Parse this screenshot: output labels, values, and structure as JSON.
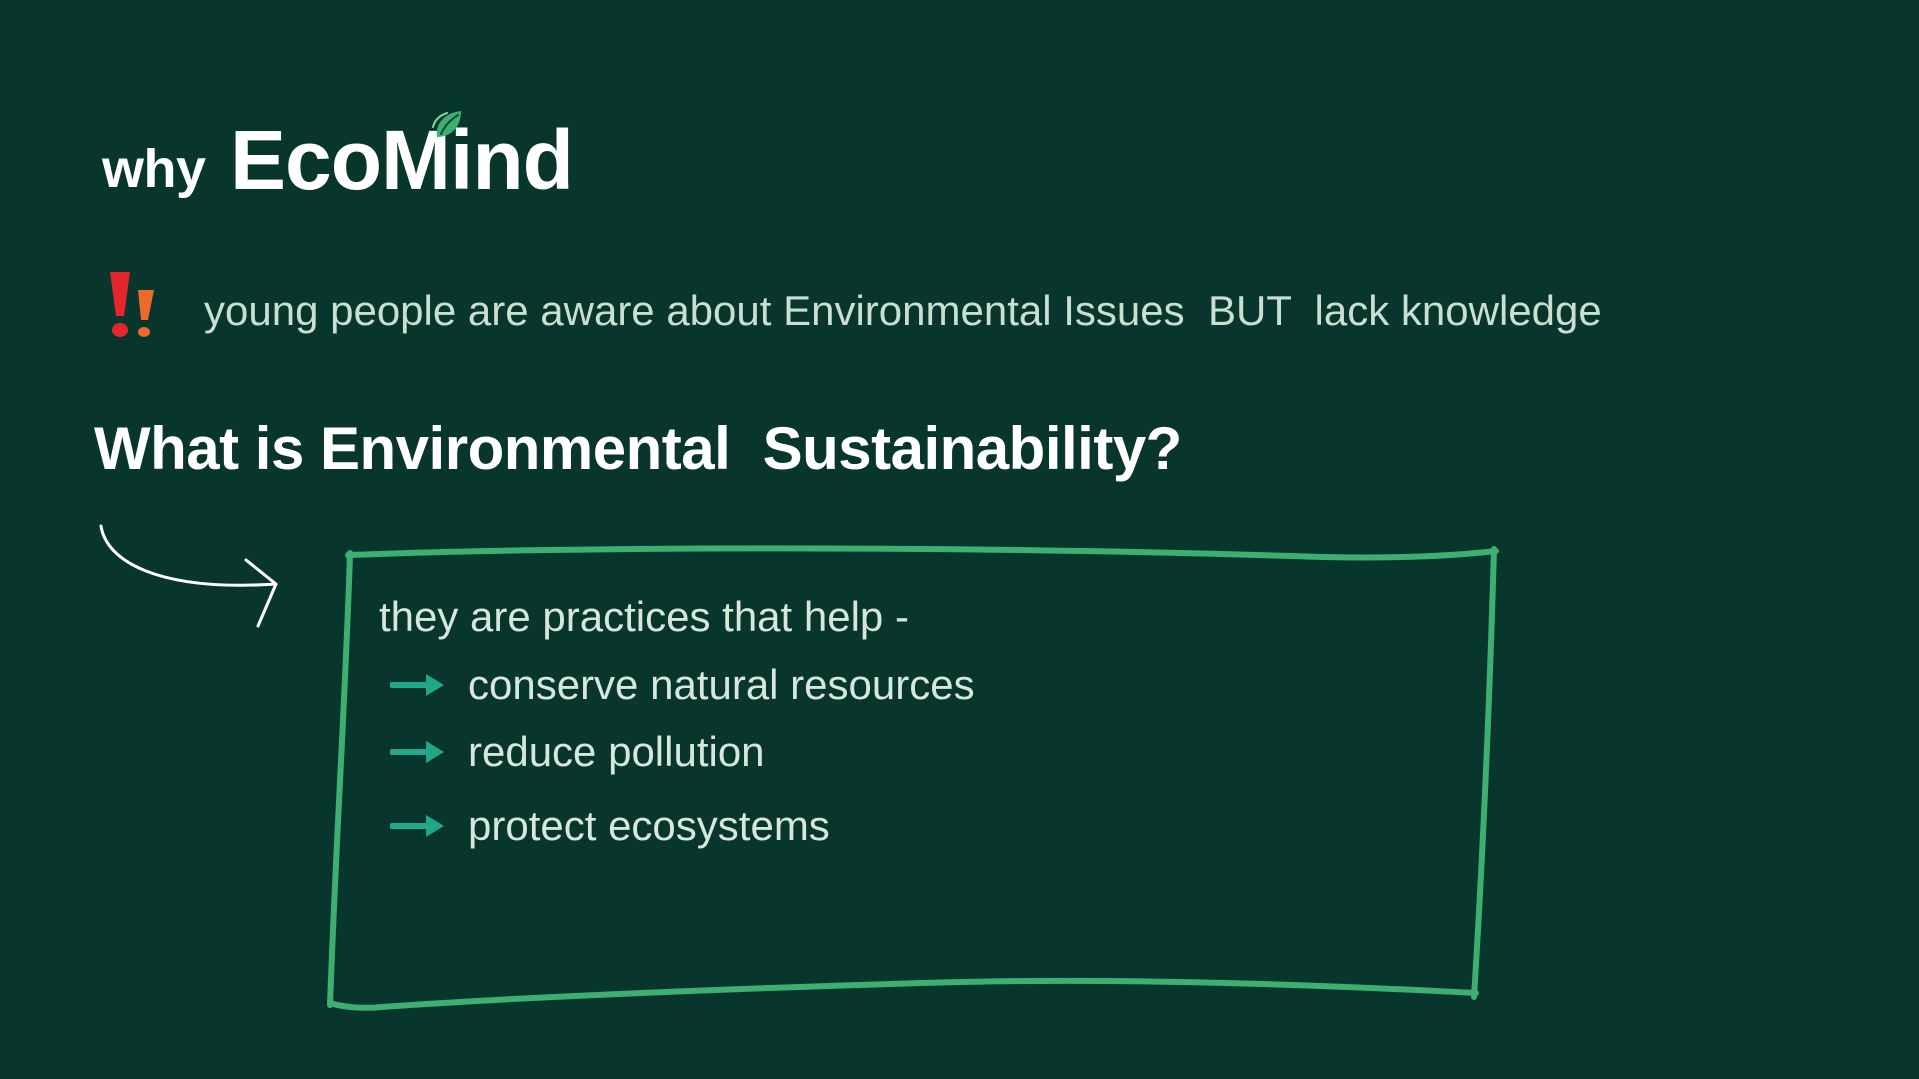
{
  "header": {
    "why": "why",
    "brand": "EcoMind"
  },
  "icons": {
    "leaf": "leaf-icon",
    "alert": "double-exclamation-icon",
    "curve_arrow": "curved-arrow-icon",
    "bullet_arrow": "right-arrow-icon"
  },
  "statement": "young people are aware about Environmental Issues  BUT  lack knowledge",
  "question": "What is Environmental  Sustainability?",
  "box": {
    "intro": "they are practices that help -",
    "items": [
      {
        "label": "conserve natural resources"
      },
      {
        "label": "reduce pollution"
      },
      {
        "label": "protect ecosystems"
      }
    ]
  },
  "colors": {
    "background": "#08352c",
    "accent_green": "#3fae73",
    "arrow_teal": "#1fa98a",
    "alert_red": "#e5262f",
    "alert_orange": "#ec6a2c"
  }
}
